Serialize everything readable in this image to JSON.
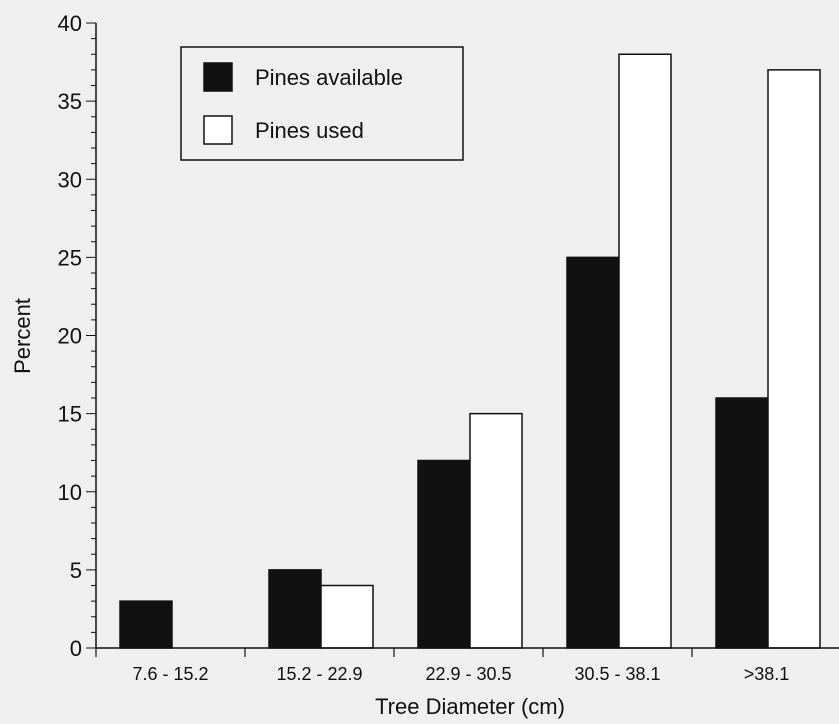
{
  "chart_data": {
    "type": "bar",
    "title": "",
    "xlabel": "Tree Diameter (cm)",
    "ylabel": "Percent",
    "categories": [
      "7.6 - 15.2",
      "15.2 - 22.9",
      "22.9 - 30.5",
      "30.5 - 38.1",
      ">38.1"
    ],
    "series": [
      {
        "name": "Pines available",
        "values": [
          3,
          5,
          12,
          25,
          16
        ],
        "color": "#111111",
        "fill": "solid"
      },
      {
        "name": "Pines used",
        "values": [
          0,
          4,
          15,
          38,
          37
        ],
        "color": "#ffffff",
        "fill": "outline"
      }
    ],
    "ylim": [
      0,
      40
    ],
    "yticks": [
      0,
      5,
      10,
      15,
      20,
      25,
      30,
      35,
      40
    ],
    "grid": false,
    "legend_position": "top-left",
    "background": "#efefef"
  }
}
